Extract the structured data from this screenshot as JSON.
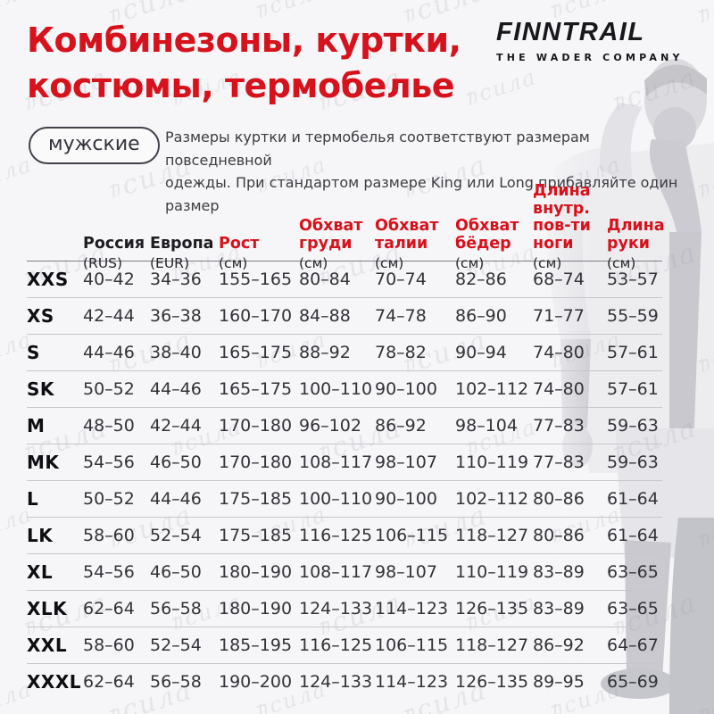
{
  "accent_color": "#d6121c",
  "header": {
    "title_line1": "Комбинезоны, куртки,",
    "title_line2": "костюмы, термобелье",
    "logo": {
      "name": "FINNTRAIL",
      "tagline": "THE WADER COMPANY"
    },
    "badge": "мужские",
    "note_line1": "Размеры куртки и термобелья соответствуют размерам повседневной",
    "note_line2": "одежды. При стандартом размере King или Long прибавляйте один размер"
  },
  "watermark": {
    "glyph": "力",
    "cyrillic": "сила"
  },
  "table": {
    "columns": [
      {
        "label": "Россия",
        "sub": "(RUS)",
        "red": false
      },
      {
        "label": "Европа",
        "sub": "(EUR)",
        "red": false
      },
      {
        "label": "Рост",
        "sub": "(см)",
        "red": true
      },
      {
        "label": "Обхват груди",
        "sub": "(см)",
        "red": true
      },
      {
        "label": "Обхват талии",
        "sub": "(см)",
        "red": true
      },
      {
        "label": "Обхват бёдер",
        "sub": "(см)",
        "red": true
      },
      {
        "label": "Длина внутр. пов-ти ноги",
        "sub": "(см)",
        "red": true
      },
      {
        "label": "Длина руки",
        "sub": "(см)",
        "red": true
      }
    ],
    "rows": [
      {
        "size": "XXS",
        "values": [
          "40–42",
          "34–36",
          "155–165",
          "80–84",
          "70–74",
          "82–86",
          "68–74",
          "53–57"
        ]
      },
      {
        "size": "XS",
        "values": [
          "42–44",
          "36–38",
          "160–170",
          "84–88",
          "74–78",
          "86–90",
          "71–77",
          "55–59"
        ]
      },
      {
        "size": "S",
        "values": [
          "44–46",
          "38–40",
          "165–175",
          "88–92",
          "78–82",
          "90–94",
          "74–80",
          "57–61"
        ]
      },
      {
        "size": "SK",
        "values": [
          "50–52",
          "44–46",
          "165–175",
          "100–110",
          "90–100",
          "102–112",
          "74–80",
          "57–61"
        ]
      },
      {
        "size": "M",
        "values": [
          "48–50",
          "42–44",
          "170–180",
          "96–102",
          "86–92",
          "98–104",
          "77–83",
          "59–63"
        ]
      },
      {
        "size": "MK",
        "values": [
          "54–56",
          "46–50",
          "170–180",
          "108–117",
          "98–107",
          "110–119",
          "77–83",
          "59–63"
        ]
      },
      {
        "size": "L",
        "values": [
          "50–52",
          "44–46",
          "175–185",
          "100–110",
          "90–100",
          "102–112",
          "80–86",
          "61–64"
        ]
      },
      {
        "size": "LK",
        "values": [
          "58–60",
          "52–54",
          "175–185",
          "116–125",
          "106–115",
          "118–127",
          "80–86",
          "61–64"
        ]
      },
      {
        "size": "XL",
        "values": [
          "54–56",
          "46–50",
          "180–190",
          "108–117",
          "98–107",
          "110–119",
          "83–89",
          "63–65"
        ]
      },
      {
        "size": "XLK",
        "values": [
          "62–64",
          "56–58",
          "180–190",
          "124–133",
          "114–123",
          "126–135",
          "83–89",
          "63–65"
        ]
      },
      {
        "size": "XXL",
        "values": [
          "58–60",
          "52–54",
          "185–195",
          "116–125",
          "106–115",
          "118–127",
          "86–92",
          "64–67"
        ]
      },
      {
        "size": "XXXL",
        "values": [
          "62–64",
          "56–58",
          "190–200",
          "124–133",
          "114–123",
          "126–135",
          "89–95",
          "65–69"
        ]
      }
    ]
  }
}
